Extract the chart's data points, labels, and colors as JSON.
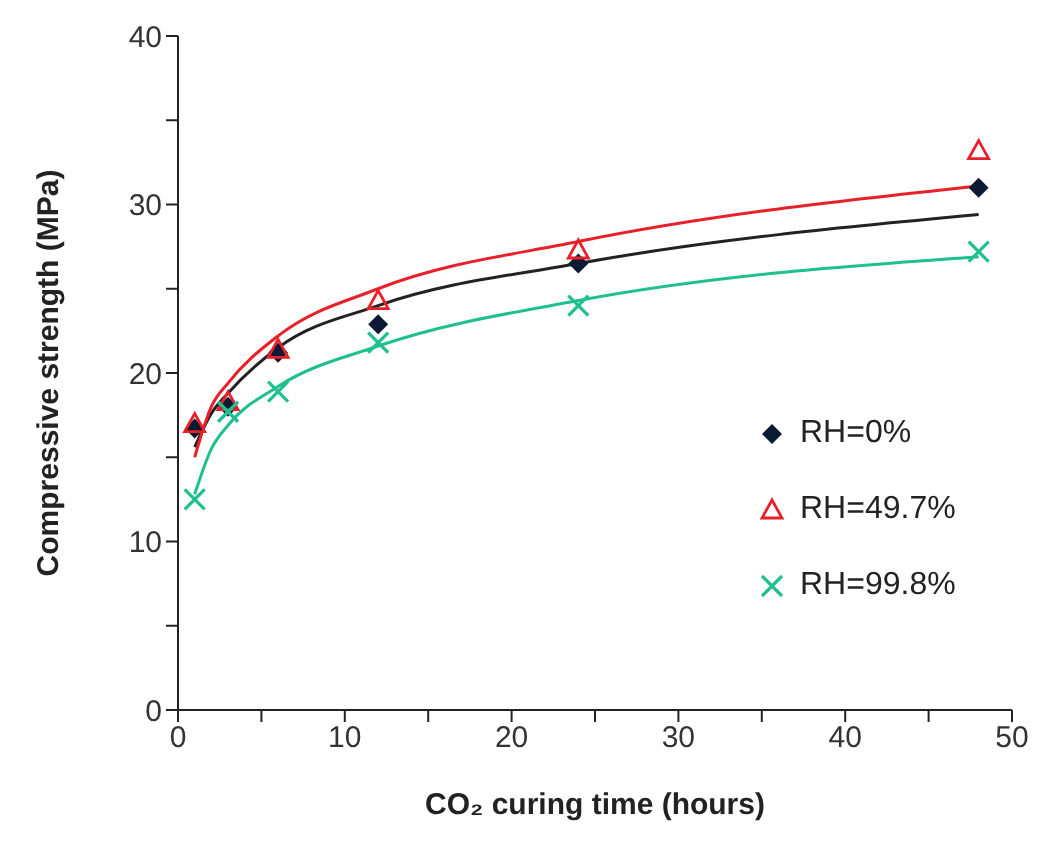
{
  "chart_data": {
    "type": "scatter",
    "xlabel": "CO₂ curing time (hours)",
    "ylabel": "Compressive strength (MPa)",
    "xlim": [
      0,
      50
    ],
    "xticks": [
      0,
      {
        "value": 5,
        "label": null
      },
      10,
      {
        "value": 15,
        "label": null
      },
      20,
      {
        "value": 25,
        "label": null
      },
      30,
      {
        "value": 35,
        "label": null
      },
      40,
      {
        "value": 45,
        "label": null
      },
      50
    ],
    "ylim": [
      0,
      40
    ],
    "yticks": [
      0,
      {
        "value": 5,
        "label": null
      },
      10,
      {
        "value": 15,
        "label": null
      },
      20,
      {
        "value": 25,
        "label": null
      },
      30,
      {
        "value": 35,
        "label": null
      },
      40
    ],
    "grid": false,
    "legend": "right",
    "series": [
      {
        "name": "RH=0%",
        "marker": "diamond",
        "color": "#0b1a33",
        "x": [
          1,
          3,
          6,
          12,
          24,
          48
        ],
        "values": [
          16.7,
          18.0,
          21.2,
          22.9,
          26.5,
          31.0
        ]
      },
      {
        "name": "RH=49.7%",
        "marker": "triangle",
        "color": "#e8202a",
        "x": [
          1,
          3,
          6,
          12,
          24,
          48
        ],
        "values": [
          17.0,
          18.3,
          21.4,
          24.3,
          27.3,
          33.2
        ]
      },
      {
        "name": "RH=99.8%",
        "marker": "cross",
        "color": "#1fbf8f",
        "x": [
          1,
          3,
          6,
          12,
          24,
          48
        ],
        "values": [
          12.5,
          17.7,
          18.9,
          21.8,
          24.0,
          27.2
        ]
      },
      {
        "type": "line",
        "marker": "none",
        "color": "#222222",
        "x": [
          1,
          2,
          3,
          6,
          12,
          24,
          48
        ],
        "values": [
          15.6,
          17.6,
          18.8,
          21.5,
          24.0,
          26.5,
          29.4
        ]
      },
      {
        "type": "line",
        "marker": "none",
        "color": "#e8202a",
        "x": [
          1,
          2,
          3,
          6,
          12,
          24,
          48
        ],
        "values": [
          15.0,
          18.0,
          19.4,
          22.2,
          25.0,
          27.8,
          31.1
        ]
      },
      {
        "type": "line",
        "marker": "none",
        "color": "#1fbf8f",
        "x": [
          1,
          2,
          3,
          6,
          12,
          24,
          48
        ],
        "values": [
          12.8,
          15.5,
          16.9,
          19.2,
          21.6,
          24.3,
          26.9
        ]
      }
    ]
  }
}
